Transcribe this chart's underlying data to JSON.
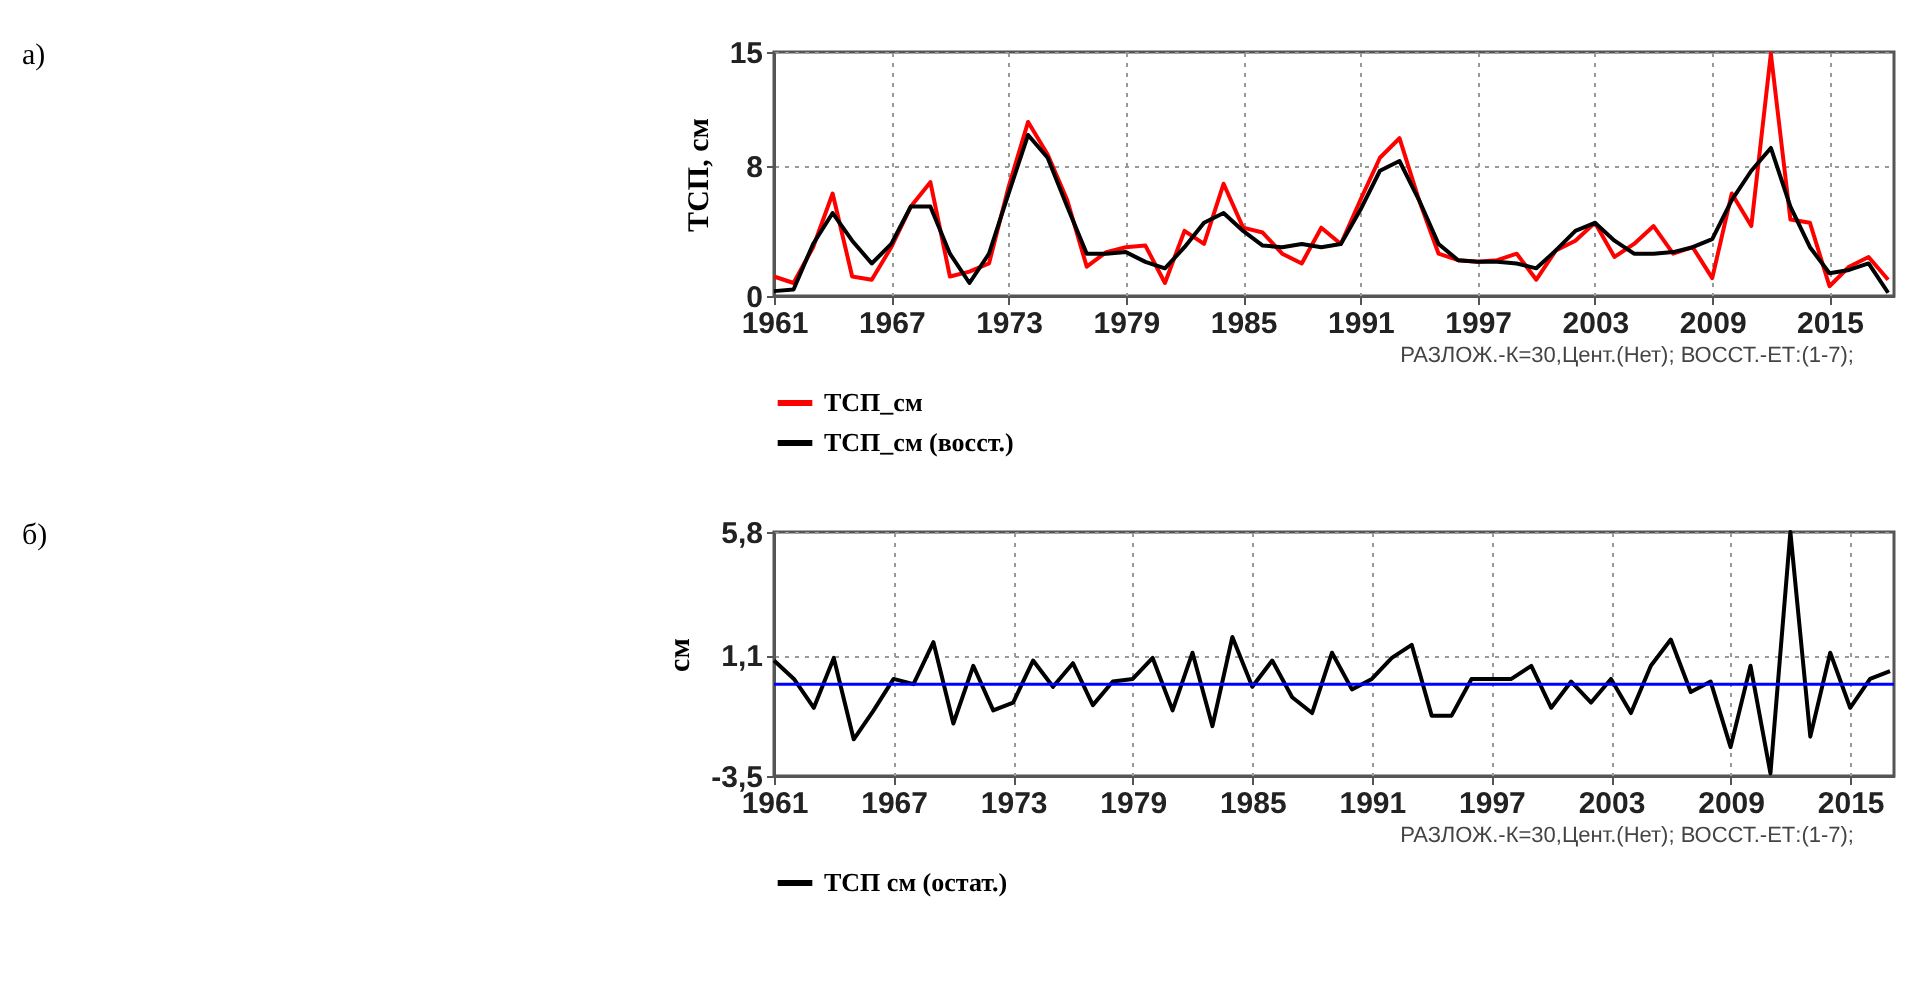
{
  "chart_data": [
    {
      "type": "line",
      "ylabel": "ТСП, см",
      "annotations": [
        "а)",
        "РАЗЛОЖ.-К=30,Цент.(Нет);    ВОССТ.-ЕТ:(1-7);"
      ],
      "x": [
        1961,
        1962,
        1963,
        1964,
        1965,
        1966,
        1967,
        1968,
        1969,
        1970,
        1971,
        1972,
        1973,
        1974,
        1975,
        1976,
        1977,
        1978,
        1979,
        1980,
        1981,
        1982,
        1983,
        1984,
        1985,
        1986,
        1987,
        1988,
        1989,
        1990,
        1991,
        1992,
        1993,
        1994,
        1995,
        1996,
        1997,
        1998,
        1999,
        2000,
        2001,
        2002,
        2003,
        2004,
        2005,
        2006,
        2007,
        2008,
        2009,
        2010,
        2011,
        2012,
        2013,
        2014,
        2015,
        2016,
        2017,
        2018
      ],
      "series": [
        {
          "name": "ТСП_см",
          "color": "#ff0000",
          "values": [
            1.2,
            0.8,
            3,
            6.3,
            1.2,
            1.0,
            3,
            5.5,
            7,
            1.2,
            1.5,
            2,
            6.7,
            10.7,
            8.7,
            5.9,
            1.8,
            2.7,
            3,
            3.1,
            0.8,
            4,
            3.2,
            6.9,
            4.2,
            3.9,
            2.6,
            2,
            4.2,
            3.2,
            5.9,
            8.5,
            9.7,
            5.9,
            2.6,
            2.2,
            2.1,
            2.2,
            2.6,
            1.0,
            2.8,
            3.4,
            4.5,
            2.4,
            3.2,
            4.3,
            2.6,
            3,
            1.1,
            6.3,
            4.3,
            14.9,
            4.7,
            4.5,
            0.6,
            1.8,
            2.4,
            1.0
          ]
        },
        {
          "name": "ТСП_см  (восст.)",
          "color": "#000000",
          "values": [
            0.3,
            0.4,
            3.2,
            5.1,
            3.4,
            2,
            3.2,
            5.5,
            5.5,
            2.6,
            0.8,
            2.6,
            6.3,
            9.9,
            8.5,
            5.5,
            2.6,
            2.6,
            2.7,
            2.1,
            1.7,
            3,
            4.5,
            5.1,
            4,
            3.1,
            3,
            3.2,
            3,
            3.2,
            5.3,
            7.7,
            8.3,
            5.9,
            3.2,
            2.2,
            2.1,
            2.1,
            2.0,
            1.7,
            2.8,
            4,
            4.5,
            3.4,
            2.6,
            2.6,
            2.7,
            3,
            3.5,
            5.9,
            7.7,
            9.1,
            5.5,
            3,
            1.4,
            1.6,
            2,
            0.2
          ]
        }
      ],
      "xlim": [
        1961,
        2018.3
      ],
      "xticks": [
        1961,
        1967,
        1973,
        1979,
        1985,
        1991,
        1997,
        2003,
        2009,
        2015
      ],
      "ylim": [
        0,
        15
      ],
      "yticks": [
        0,
        8,
        15
      ],
      "grid": true,
      "legend": "bottom",
      "line_style": "solid"
    },
    {
      "type": "line",
      "ylabel": "см",
      "annotations": [
        "б)",
        "РАЗЛОЖ.-К=30,Цент.(Нет);    ВОССТ.-ЕТ:(1-7);"
      ],
      "x": [
        1961,
        1962,
        1963,
        1964,
        1965,
        1966,
        1967,
        1968,
        1969,
        1970,
        1971,
        1972,
        1973,
        1974,
        1975,
        1976,
        1977,
        1978,
        1979,
        1980,
        1981,
        1982,
        1983,
        1984,
        1985,
        1986,
        1987,
        1988,
        1989,
        1990,
        1991,
        1992,
        1993,
        1994,
        1995,
        1996,
        1997,
        1998,
        1999,
        2000,
        2001,
        2002,
        2003,
        2004,
        2005,
        2006,
        2007,
        2008,
        2009,
        2010,
        2011,
        2012,
        2013,
        2014,
        2015,
        2016,
        2017
      ],
      "series": [
        {
          "name": "ТСП  см  (остат.)",
          "color": "#000000",
          "values": [
            0.9,
            0.2,
            -0.9,
            1.0,
            -2.1,
            -1.0,
            0.2,
            0,
            1.6,
            -1.5,
            0.7,
            -1.0,
            -0.7,
            0.9,
            -0.1,
            0.8,
            -0.8,
            0.1,
            0.2,
            1.0,
            -1.0,
            1.2,
            -1.6,
            1.8,
            -0.1,
            0.9,
            -0.5,
            -1.1,
            1.2,
            -0.2,
            0.2,
            1.0,
            1.5,
            -1.2,
            -1.2,
            0.2,
            0.2,
            0.2,
            0.7,
            -0.9,
            0.1,
            -0.7,
            0.2,
            -1.1,
            0.7,
            1.7,
            -0.3,
            0.1,
            -2.4,
            0.7,
            -3.4,
            5.8,
            -2.0,
            1.2,
            -0.9,
            0.2,
            0.5
          ]
        }
      ],
      "xlim": [
        1961,
        2017.2
      ],
      "xticks": [
        1961,
        1967,
        1973,
        1979,
        1985,
        1991,
        1997,
        2003,
        2009,
        2015
      ],
      "ylim": [
        -3.5,
        5.8
      ],
      "yticks": [
        {
          "value": -3.5,
          "label": "-3,5"
        },
        {
          "value": 1.1,
          "label": "1,1"
        },
        {
          "value": 5.8,
          "label": "5,8"
        }
      ],
      "ref_lines": [
        {
          "axis": "y",
          "value": 0,
          "label": null,
          "color": "#0000ff"
        }
      ],
      "grid": true,
      "legend": "bottom",
      "line_style": "solid"
    }
  ]
}
